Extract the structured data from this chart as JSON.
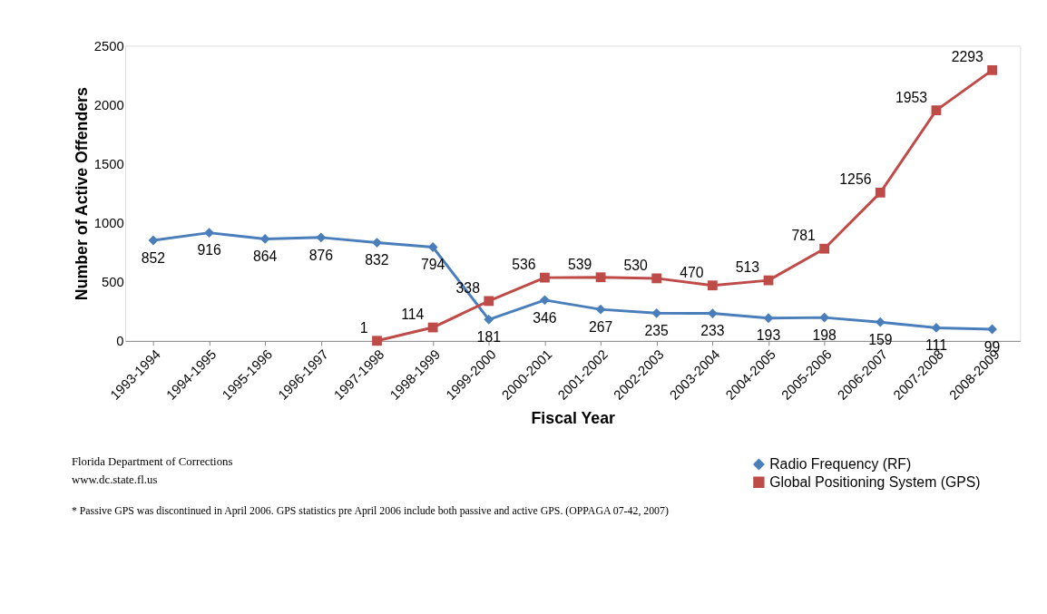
{
  "chart_data": {
    "type": "line",
    "xlabel": "Fiscal Year",
    "ylabel": "Number of Active Offenders",
    "categories": [
      "1993-1994",
      "1994-1995",
      "1995-1996",
      "1996-1997",
      "1997-1998",
      "1998-1999",
      "1999-2000",
      "2000-2001",
      "2001-2002",
      "2002-2003",
      "2003-2004",
      "2004-2005",
      "2005-2006",
      "2006-2007",
      "2007-2008",
      "2008-2009"
    ],
    "series": [
      {
        "name": "Radio Frequency (RF)",
        "color": "#4a7ebb",
        "marker": "diamond",
        "values": [
          852,
          916,
          864,
          876,
          832,
          794,
          181,
          346,
          267,
          235,
          233,
          193,
          198,
          159,
          111,
          99
        ]
      },
      {
        "name": "Global Positioning System (GPS)",
        "color": "#be4b48",
        "marker": "square",
        "values": [
          null,
          null,
          null,
          null,
          1,
          114,
          338,
          536,
          539,
          530,
          470,
          513,
          781,
          1256,
          1953,
          2293
        ]
      }
    ],
    "ylim": [
      0,
      2500
    ],
    "yticks": [
      0,
      500,
      1000,
      1500,
      2000,
      2500
    ],
    "grid": false,
    "legend": "bottom right",
    "data_labels": true,
    "annotations": [
      "Florida Department of Corrections",
      "www.dc.state.fl.us",
      "* Passive GPS was discontinued in April 2006.  GPS statistics pre April 2006 include both passive and active GPS. (OPPAGA 07-42, 2007)"
    ]
  }
}
